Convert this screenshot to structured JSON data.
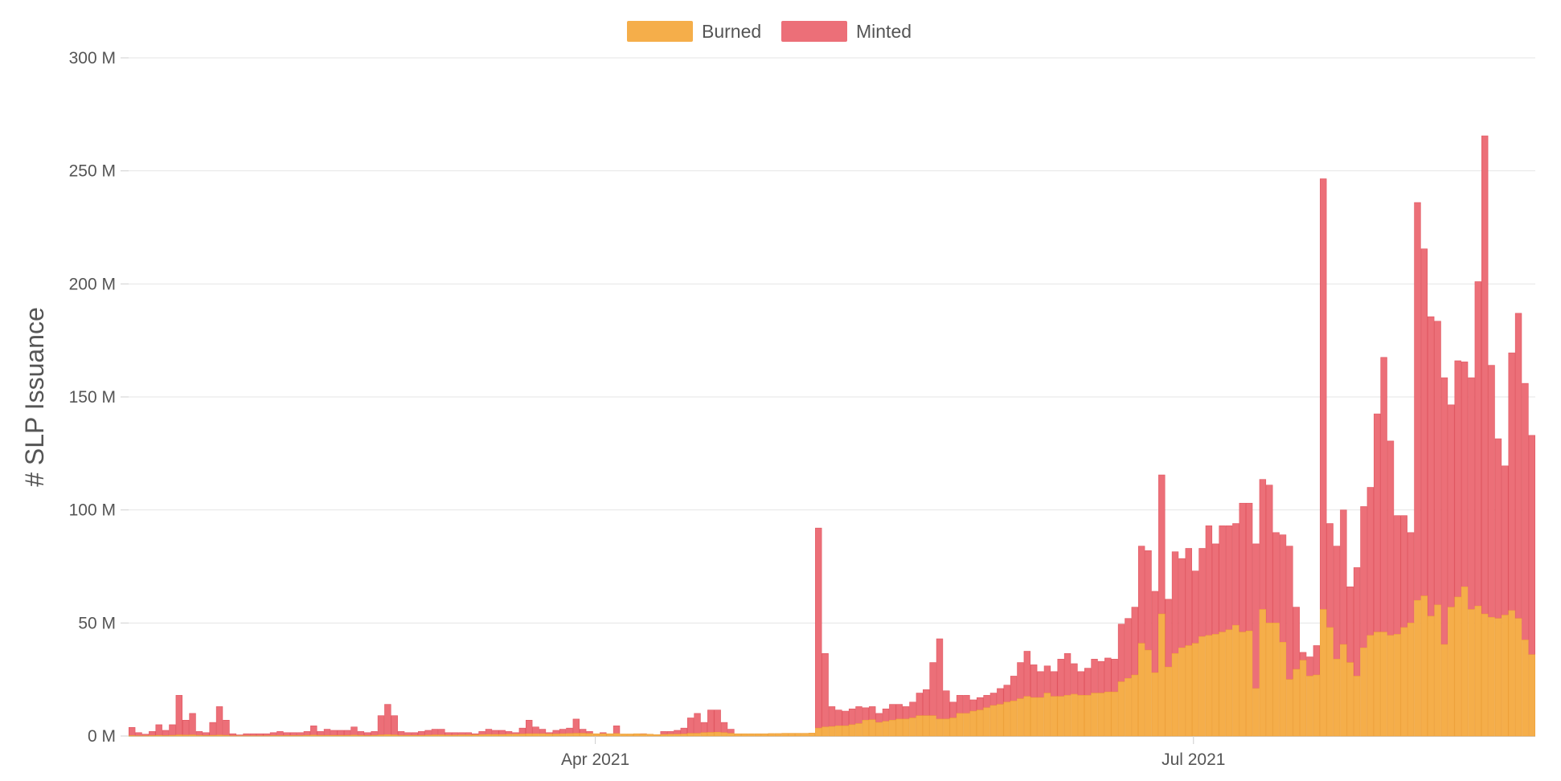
{
  "colors": {
    "burned": "#f5ae4a",
    "minted": "#ec6f78",
    "grid": "#e4e4e4"
  },
  "chart_data": {
    "type": "bar",
    "stacked": true,
    "ylabel": "# SLP Issuance",
    "xlabel": "",
    "title": "",
    "ylim": [
      0,
      300000000
    ],
    "y_ticks": [
      "0 M",
      "50 M",
      "100 M",
      "150 M",
      "200 M",
      "250 M",
      "300 M"
    ],
    "x_tick_labels": [
      "Apr 2021",
      "Jul 2021"
    ],
    "x_tick_dates": [
      "2021-04-01",
      "2021-07-01"
    ],
    "x_range": [
      "2021-01-20",
      "2021-08-22"
    ],
    "grid": true,
    "legend_position": "top-center",
    "series": [
      {
        "name": "Burned",
        "color": "#f5ae4a",
        "values_m": [
          0,
          0,
          0,
          0,
          0,
          0,
          0,
          0,
          0,
          0,
          0,
          0,
          0,
          0,
          0,
          0,
          0,
          0,
          0,
          0,
          0,
          0,
          0,
          0,
          0,
          0,
          0,
          0,
          0,
          0,
          0,
          0,
          0,
          0,
          0,
          0,
          0,
          0,
          0,
          0,
          0,
          0,
          0,
          0,
          0,
          0,
          0,
          0,
          0,
          0,
          0,
          0,
          0,
          0,
          0,
          0,
          0,
          0,
          0,
          0,
          0,
          0,
          0,
          0,
          0,
          0,
          0,
          0,
          0,
          0,
          0,
          0,
          0,
          0,
          0,
          0,
          0,
          0,
          0,
          0,
          0,
          0,
          0,
          0,
          0,
          0,
          0,
          0,
          0,
          0,
          0,
          0,
          0,
          0,
          0,
          0,
          0,
          0,
          0,
          0,
          0,
          0,
          0,
          0,
          0,
          0,
          0,
          0,
          0,
          0,
          0,
          0,
          0,
          0,
          0,
          0,
          0,
          0,
          0,
          0,
          0,
          0,
          0,
          0,
          0,
          0,
          0,
          0,
          0,
          0,
          0,
          0,
          0,
          0,
          0,
          0,
          0,
          0,
          0,
          0,
          0,
          0,
          0,
          0,
          0,
          0,
          0,
          0,
          0,
          0,
          0,
          0,
          0,
          0,
          0,
          0,
          0,
          0,
          0,
          0,
          0,
          0,
          0,
          0,
          0,
          0,
          0,
          0,
          0,
          0,
          0,
          0,
          0,
          0,
          0,
          0,
          0,
          0,
          0,
          0,
          0,
          0,
          0,
          0,
          0,
          0,
          0,
          0,
          0,
          0,
          0,
          0,
          0,
          0,
          0,
          0,
          0,
          0,
          0,
          0,
          0,
          0,
          0,
          0,
          0,
          0,
          0,
          0,
          0,
          0,
          0,
          0,
          0,
          0
        ]
      },
      {
        "name": "Minted",
        "color": "#ec6f78",
        "values_m": []
      }
    ],
    "daily": [
      [
        0.2,
        3.8
      ],
      [
        0.1,
        1.5
      ],
      [
        0.1,
        0.8
      ],
      [
        0.2,
        2.0
      ],
      [
        0.3,
        5.0
      ],
      [
        0.2,
        2.5
      ],
      [
        0.3,
        5.0
      ],
      [
        0.5,
        18.0
      ],
      [
        0.4,
        7.0
      ],
      [
        0.5,
        10.0
      ],
      [
        0.3,
        2.0
      ],
      [
        0.2,
        1.5
      ],
      [
        0.3,
        6.0
      ],
      [
        0.4,
        13.0
      ],
      [
        0.3,
        7.0
      ],
      [
        0.1,
        1.0
      ],
      [
        0.1,
        0.5
      ],
      [
        0.1,
        1.0
      ],
      [
        0.1,
        1.0
      ],
      [
        0.1,
        1.0
      ],
      [
        0.1,
        1.0
      ],
      [
        0.2,
        1.5
      ],
      [
        0.2,
        2.0
      ],
      [
        0.2,
        1.5
      ],
      [
        0.2,
        1.5
      ],
      [
        0.2,
        1.5
      ],
      [
        0.3,
        2.0
      ],
      [
        0.4,
        4.5
      ],
      [
        0.3,
        2.0
      ],
      [
        0.3,
        3.0
      ],
      [
        0.3,
        2.5
      ],
      [
        0.3,
        2.5
      ],
      [
        0.3,
        2.5
      ],
      [
        0.4,
        4.0
      ],
      [
        0.3,
        2.0
      ],
      [
        0.2,
        1.5
      ],
      [
        0.3,
        2.0
      ],
      [
        0.5,
        9.0
      ],
      [
        0.6,
        14.0
      ],
      [
        0.5,
        9.0
      ],
      [
        0.3,
        2.0
      ],
      [
        0.3,
        1.5
      ],
      [
        0.3,
        1.5
      ],
      [
        0.3,
        2.0
      ],
      [
        0.4,
        2.5
      ],
      [
        0.5,
        3.0
      ],
      [
        0.5,
        3.0
      ],
      [
        0.4,
        1.5
      ],
      [
        0.4,
        1.5
      ],
      [
        0.5,
        1.5
      ],
      [
        0.5,
        1.5
      ],
      [
        0.5,
        1.0
      ],
      [
        0.6,
        2.0
      ],
      [
        0.7,
        3.0
      ],
      [
        0.7,
        2.5
      ],
      [
        0.7,
        2.5
      ],
      [
        0.8,
        2.0
      ],
      [
        0.8,
        1.5
      ],
      [
        0.9,
        3.5
      ],
      [
        1.0,
        7.0
      ],
      [
        1.0,
        4.0
      ],
      [
        1.0,
        3.0
      ],
      [
        0.9,
        1.5
      ],
      [
        0.9,
        2.5
      ],
      [
        1.0,
        3.0
      ],
      [
        1.1,
        3.5
      ],
      [
        1.2,
        7.5
      ],
      [
        1.2,
        3.0
      ],
      [
        1.1,
        2.0
      ],
      [
        1.0,
        1.0
      ],
      [
        1.0,
        1.5
      ],
      [
        1.0,
        1.0
      ],
      [
        1.1,
        4.5
      ],
      [
        0.9,
        0.8
      ],
      [
        0.9,
        0.8
      ],
      [
        1.0,
        1.0
      ],
      [
        0.9,
        1.0
      ],
      [
        0.8,
        0.5
      ],
      [
        0.6,
        0.5
      ],
      [
        0.7,
        2.0
      ],
      [
        0.8,
        2.0
      ],
      [
        0.8,
        2.5
      ],
      [
        0.9,
        3.5
      ],
      [
        1.2,
        8.0
      ],
      [
        1.2,
        10.0
      ],
      [
        1.5,
        6.0
      ],
      [
        1.6,
        11.5
      ],
      [
        1.7,
        11.5
      ],
      [
        1.5,
        6.0
      ],
      [
        1.2,
        3.0
      ],
      [
        1.0,
        1.0
      ],
      [
        1.0,
        0.8
      ],
      [
        1.0,
        0.8
      ],
      [
        1.0,
        0.8
      ],
      [
        1.0,
        1.0
      ],
      [
        1.1,
        1.0
      ],
      [
        1.1,
        1.0
      ],
      [
        1.2,
        1.0
      ],
      [
        1.2,
        1.0
      ],
      [
        1.2,
        1.0
      ],
      [
        1.2,
        1.0
      ],
      [
        1.3,
        1.0
      ],
      [
        3.5,
        92.0
      ],
      [
        4.0,
        36.5
      ],
      [
        4.2,
        13.0
      ],
      [
        4.5,
        11.5
      ],
      [
        4.5,
        11.0
      ],
      [
        5.0,
        12.0
      ],
      [
        5.5,
        13.0
      ],
      [
        7.0,
        12.5
      ],
      [
        7.2,
        13.0
      ],
      [
        6.0,
        10.0
      ],
      [
        6.5,
        12.0
      ],
      [
        7.0,
        14.0
      ],
      [
        7.5,
        14.0
      ],
      [
        7.5,
        13.0
      ],
      [
        8.0,
        15.0
      ],
      [
        9.0,
        19.0
      ],
      [
        9.0,
        20.5
      ],
      [
        9.0,
        32.5
      ],
      [
        7.5,
        43.0
      ],
      [
        7.5,
        20.0
      ],
      [
        8.0,
        15.0
      ],
      [
        10.0,
        18.0
      ],
      [
        10.0,
        18.0
      ],
      [
        11.0,
        16.0
      ],
      [
        11.5,
        17.0
      ],
      [
        12.5,
        18.0
      ],
      [
        13.5,
        19.0
      ],
      [
        14.0,
        21.0
      ],
      [
        15.0,
        22.5
      ],
      [
        15.5,
        26.5
      ],
      [
        16.5,
        32.5
      ],
      [
        17.5,
        37.5
      ],
      [
        17.0,
        31.5
      ],
      [
        17.0,
        28.5
      ],
      [
        19.0,
        31.0
      ],
      [
        17.5,
        28.5
      ],
      [
        17.5,
        34.0
      ],
      [
        18.0,
        36.5
      ],
      [
        18.5,
        32.0
      ],
      [
        18.0,
        28.5
      ],
      [
        18.0,
        30.0
      ],
      [
        19.0,
        34.0
      ],
      [
        19.0,
        33.0
      ],
      [
        19.5,
        34.5
      ],
      [
        19.5,
        34.0
      ],
      [
        24.0,
        49.5
      ],
      [
        25.5,
        52.0
      ],
      [
        27.0,
        57.0
      ],
      [
        41.0,
        84.0
      ],
      [
        38.0,
        82.0
      ],
      [
        28.0,
        64.0
      ],
      [
        54.0,
        115.5
      ],
      [
        30.5,
        60.5
      ],
      [
        36.5,
        81.5
      ],
      [
        39.0,
        78.5
      ],
      [
        40.0,
        83.0
      ],
      [
        41.0,
        73.0
      ],
      [
        44.0,
        83.0
      ],
      [
        44.5,
        93.0
      ],
      [
        45.0,
        85.0
      ],
      [
        46.0,
        93.0
      ],
      [
        47.0,
        93.0
      ],
      [
        49.0,
        94.0
      ],
      [
        46.0,
        103.0
      ],
      [
        46.5,
        103.0
      ],
      [
        21.0,
        85.0
      ],
      [
        56.0,
        113.5
      ],
      [
        50.0,
        111.0
      ],
      [
        50.0,
        90.0
      ],
      [
        41.5,
        89.0
      ],
      [
        25.0,
        84.0
      ],
      [
        29.5,
        57.0
      ],
      [
        33.5,
        37.0
      ],
      [
        26.5,
        35.0
      ],
      [
        27.0,
        40.0
      ],
      [
        56.0,
        246.5
      ],
      [
        48.0,
        94.0
      ],
      [
        34.0,
        84.0
      ],
      [
        40.5,
        100.0
      ],
      [
        32.5,
        66.0
      ],
      [
        26.5,
        74.5
      ],
      [
        39.0,
        101.5
      ],
      [
        44.5,
        110.0
      ],
      [
        46.0,
        142.5
      ],
      [
        46.0,
        167.5
      ],
      [
        44.5,
        130.5
      ],
      [
        45.0,
        97.5
      ],
      [
        48.0,
        97.5
      ],
      [
        50.0,
        90.0
      ],
      [
        60.0,
        236.0
      ],
      [
        62.0,
        215.5
      ],
      [
        53.0,
        185.5
      ],
      [
        58.0,
        183.5
      ],
      [
        40.5,
        158.5
      ],
      [
        57.0,
        146.5
      ],
      [
        61.5,
        166.0
      ],
      [
        66.0,
        165.5
      ],
      [
        56.0,
        158.5
      ],
      [
        57.5,
        201.0
      ],
      [
        54.0,
        265.5
      ],
      [
        52.5,
        164.0
      ],
      [
        52.0,
        131.5
      ],
      [
        53.5,
        119.5
      ],
      [
        55.5,
        169.5
      ],
      [
        52.0,
        187.0
      ],
      [
        42.5,
        156.0
      ],
      [
        36.0,
        133.0
      ]
    ]
  }
}
